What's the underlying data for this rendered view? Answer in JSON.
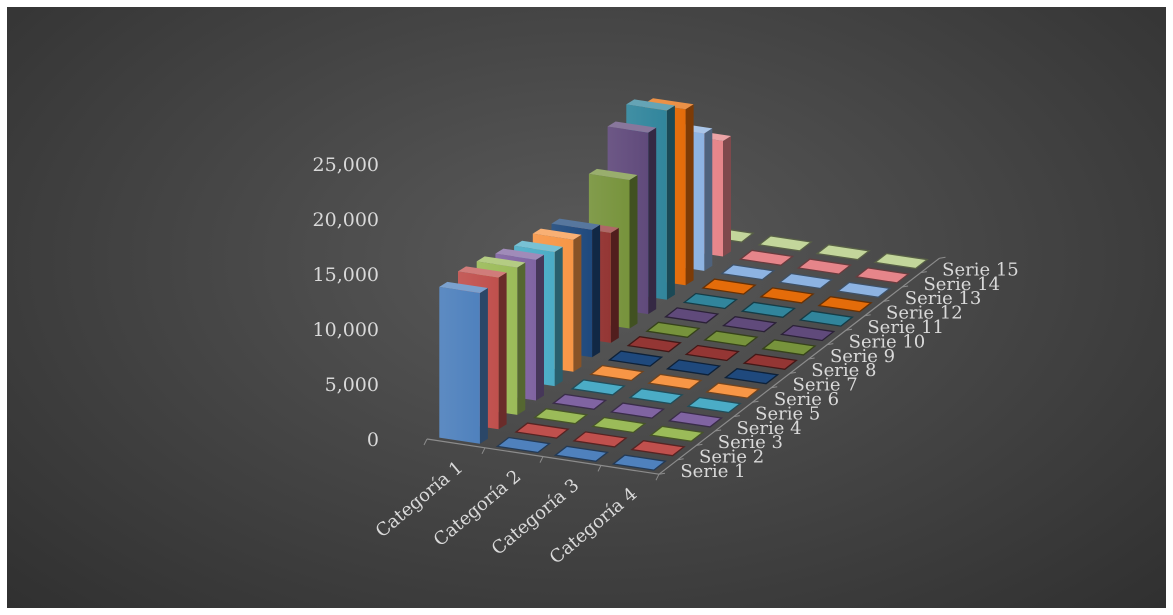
{
  "chart_data": {
    "type": "bar",
    "title": "",
    "xlabel": "",
    "ylabel": "",
    "ylim": [
      0,
      25000
    ],
    "yticks": [
      "0",
      "5,000",
      "10,000",
      "15,000",
      "20,000",
      "25,000"
    ],
    "categories": [
      "Categoría 1",
      "Categoría 2",
      "Categoría 3",
      "Categoría 4"
    ],
    "grid": false,
    "legend": "none",
    "series": [
      {
        "name": "Serie 1",
        "color": "#4f81bd",
        "values": [
          13700,
          0,
          0,
          0
        ]
      },
      {
        "name": "Serie 2",
        "color": "#c0504d",
        "values": [
          13800,
          0,
          0,
          0
        ]
      },
      {
        "name": "Serie 3",
        "color": "#9bbb59",
        "values": [
          13400,
          0,
          0,
          0
        ]
      },
      {
        "name": "Serie 4",
        "color": "#8064a2",
        "values": [
          12800,
          0,
          0,
          0
        ]
      },
      {
        "name": "Serie 5",
        "color": "#4bacc6",
        "values": [
          12200,
          0,
          0,
          0
        ]
      },
      {
        "name": "Serie 6",
        "color": "#f79646",
        "values": [
          12000,
          0,
          0,
          0
        ]
      },
      {
        "name": "Serie 7",
        "color": "#1f497d",
        "values": [
          11600,
          0,
          0,
          0
        ]
      },
      {
        "name": "Serie 8",
        "color": "#943634",
        "values": [
          10000,
          0,
          0,
          0
        ]
      },
      {
        "name": "Serie 9",
        "color": "#77933c",
        "values": [
          13500,
          0,
          0,
          0
        ]
      },
      {
        "name": "Serie 10",
        "color": "#604a7b",
        "values": [
          16500,
          0,
          0,
          0
        ]
      },
      {
        "name": "Serie 11",
        "color": "#31859c",
        "values": [
          17200,
          0,
          0,
          0
        ]
      },
      {
        "name": "Serie 12",
        "color": "#e46c0a",
        "values": [
          16000,
          0,
          0,
          0
        ]
      },
      {
        "name": "Serie 13",
        "color": "#8db3e2",
        "values": [
          12500,
          0,
          0,
          0
        ]
      },
      {
        "name": "Serie 14",
        "color": "#e6858a",
        "values": [
          10500,
          0,
          0,
          0
        ]
      },
      {
        "name": "Serie 15",
        "color": "#c3d69b",
        "values": [
          0,
          0,
          0,
          0
        ]
      }
    ]
  }
}
